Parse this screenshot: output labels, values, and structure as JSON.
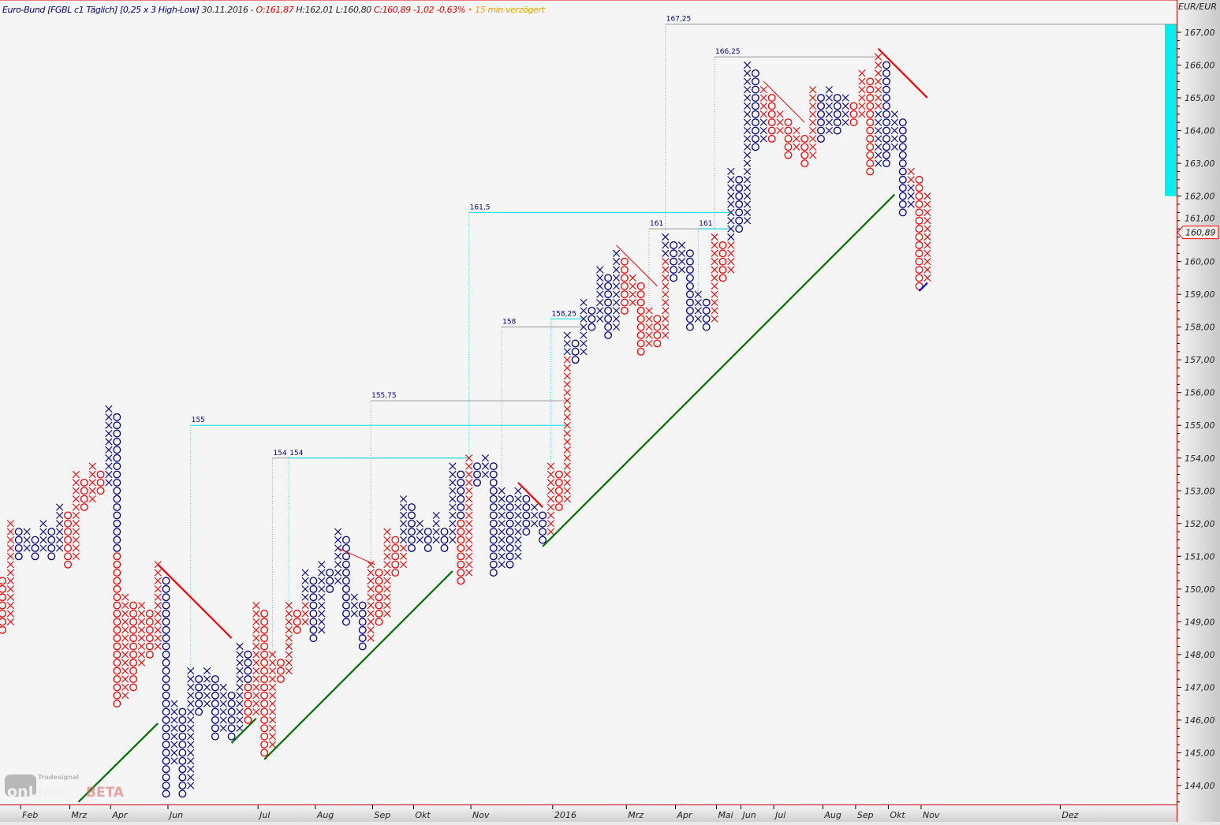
{
  "header": {
    "instrument": "Euro-Bund [FGBL c1 Täglich] [0,25 x 3 High-Low]",
    "date": "30.11.2016 -",
    "open": "O:161,87",
    "high_low": "H:162,01 L:160,80",
    "close": "C:160,89 -1,02 -0,63%",
    "delay": "• 15 min verzögert"
  },
  "logo": {
    "brand": "Tradesignal",
    "name": "onLine",
    "tag": "BETA"
  },
  "colors": {
    "n": "#000080",
    "r": "#ff0000",
    "trend_up": "#007000",
    "trend_down": "#ff0000",
    "target": "#00e5ee",
    "target_gray": "#999999",
    "bar": "#00f0f0"
  },
  "chart_data": {
    "type": "point-and-figure",
    "box_size": 0.25,
    "reversal": 3,
    "method": "High-Low",
    "currency_label": "EUR/EUR",
    "ylim": [
      143.5,
      167.75
    ],
    "y_ticks": [
      "144,00",
      "145,00",
      "146,00",
      "147,00",
      "148,00",
      "149,00",
      "150,00",
      "151,00",
      "152,00",
      "153,00",
      "154,00",
      "155,00",
      "156,00",
      "157,00",
      "158,00",
      "159,00",
      "160,00",
      "161,00",
      "162,00",
      "163,00",
      "164,00",
      "165,00",
      "166,00",
      "167,00"
    ],
    "last_price_label": "160,89",
    "last_price": 160.89,
    "x_labels": [
      {
        "label": "Feb",
        "col": 3
      },
      {
        "label": "Mrz",
        "col": 9
      },
      {
        "label": "Apr",
        "col": 14
      },
      {
        "label": "Jun",
        "col": 21
      },
      {
        "label": "Jul",
        "col": 32
      },
      {
        "label": "Aug",
        "col": 39
      },
      {
        "label": "Sep",
        "col": 46
      },
      {
        "label": "Okt",
        "col": 51
      },
      {
        "label": "Nov",
        "col": 58
      },
      {
        "label": "2016",
        "col": 68
      },
      {
        "label": "Mrz",
        "col": 77
      },
      {
        "label": "Apr",
        "col": 83
      },
      {
        "label": "Mai",
        "col": 88
      },
      {
        "label": "Jun",
        "col": 91
      },
      {
        "label": "Jul",
        "col": 95
      },
      {
        "label": "Aug",
        "col": 101
      },
      {
        "label": "Sep",
        "col": 105
      },
      {
        "label": "Okt",
        "col": 109
      },
      {
        "label": "Nov",
        "col": 113
      },
      {
        "label": "Dez",
        "col": 130
      }
    ],
    "columns": [
      [
        "O",
        148.75,
        150.25,
        "r"
      ],
      [
        "X",
        149,
        152,
        "r"
      ],
      [
        "O",
        151,
        151.75,
        "n"
      ],
      [
        "X",
        151.25,
        151.75,
        "n"
      ],
      [
        "O",
        151,
        151.5,
        "n"
      ],
      [
        "X",
        151.25,
        152,
        "n"
      ],
      [
        "O",
        151,
        151.75,
        "n"
      ],
      [
        "X",
        151.25,
        152.5,
        "n"
      ],
      [
        "O",
        150.75,
        152.25,
        "r"
      ],
      [
        "X",
        151,
        153.5,
        "r"
      ],
      [
        "O",
        152.5,
        153.25,
        "r"
      ],
      [
        "X",
        152.75,
        153.75,
        "r"
      ],
      [
        "O",
        153,
        153.5,
        "r"
      ],
      [
        "X",
        153.25,
        155.5,
        "n"
      ],
      [
        "O",
        146.5,
        155.25,
        "r",
        "n",
        151.25
      ],
      [
        "X",
        146.75,
        149.75,
        "r"
      ],
      [
        "O",
        147,
        149.5,
        "r"
      ],
      [
        "X",
        147.75,
        149.5,
        "r"
      ],
      [
        "O",
        148,
        149.25,
        "r"
      ],
      [
        "X",
        148.25,
        150.75,
        "r"
      ],
      [
        "O",
        143.75,
        150.25,
        "n"
      ],
      [
        "X",
        144.75,
        146.5,
        "n"
      ],
      [
        "O",
        143.75,
        146.25,
        "n"
      ],
      [
        "X",
        144,
        147.5,
        "n"
      ],
      [
        "O",
        146.25,
        147.25,
        "n"
      ],
      [
        "X",
        146.5,
        147.5,
        "n"
      ],
      [
        "O",
        145.5,
        147.25,
        "n"
      ],
      [
        "X",
        145.75,
        147,
        "n"
      ],
      [
        "O",
        145.5,
        146.75,
        "n"
      ],
      [
        "X",
        145.75,
        148.25,
        "n"
      ],
      [
        "O",
        146,
        148,
        "r",
        "n",
        147.25
      ],
      [
        "X",
        146.25,
        149.5,
        "r"
      ],
      [
        "O",
        145,
        149.25,
        "r"
      ],
      [
        "X",
        145.25,
        148,
        "r"
      ],
      [
        "O",
        147.25,
        147.75,
        "r"
      ],
      [
        "X",
        147.5,
        149.5,
        "r"
      ],
      [
        "O",
        148.75,
        149.25,
        "r"
      ],
      [
        "X",
        149,
        150.5,
        "r",
        "n",
        149.75
      ],
      [
        "O",
        148.5,
        150.25,
        "n"
      ],
      [
        "X",
        148.75,
        150.75,
        "n"
      ],
      [
        "O",
        150,
        150.5,
        "n"
      ],
      [
        "X",
        150.25,
        151.75,
        "n"
      ],
      [
        "O",
        149,
        151.5,
        "n"
      ],
      [
        "X",
        149.25,
        149.75,
        "n"
      ],
      [
        "O",
        148.25,
        149.5,
        "n"
      ],
      [
        "X",
        148.5,
        150.75,
        "r"
      ],
      [
        "O",
        149,
        150.5,
        "r"
      ],
      [
        "X",
        149.25,
        151.75,
        "r"
      ],
      [
        "O",
        150.5,
        151.5,
        "r"
      ],
      [
        "X",
        150.75,
        152.75,
        "r",
        "n",
        151.5
      ],
      [
        "O",
        151.25,
        152.5,
        "n"
      ],
      [
        "X",
        151.5,
        152,
        "n"
      ],
      [
        "O",
        151.25,
        151.75,
        "n"
      ],
      [
        "X",
        151.5,
        152.25,
        "n"
      ],
      [
        "O",
        151.25,
        151.75,
        "n"
      ],
      [
        "X",
        151.5,
        153.75,
        "n"
      ],
      [
        "O",
        150.25,
        153.5,
        "r",
        "n",
        152.25
      ],
      [
        "X",
        150.5,
        154,
        "r"
      ],
      [
        "O",
        153.25,
        153.75,
        "n"
      ],
      [
        "X",
        153.5,
        154,
        "n"
      ],
      [
        "O",
        150.5,
        153.75,
        "n"
      ],
      [
        "X",
        150.75,
        153,
        "n"
      ],
      [
        "O",
        150.75,
        152.75,
        "n"
      ],
      [
        "X",
        151,
        153,
        "n"
      ],
      [
        "O",
        151.75,
        152.75,
        "n"
      ],
      [
        "X",
        152,
        152.5,
        "n"
      ],
      [
        "O",
        151.5,
        152.25,
        "n"
      ],
      [
        "X",
        151.75,
        153.75,
        "r"
      ],
      [
        "O",
        152.5,
        153.5,
        "r"
      ],
      [
        "X",
        152.75,
        157.75,
        "r",
        "n",
        157.25
      ],
      [
        "O",
        157,
        157.5,
        "n"
      ],
      [
        "X",
        157.25,
        158.75,
        "n"
      ],
      [
        "O",
        158,
        158.5,
        "n"
      ],
      [
        "X",
        158.25,
        159.75,
        "n"
      ],
      [
        "O",
        157.75,
        159.5,
        "n"
      ],
      [
        "X",
        158,
        160.25,
        "n"
      ],
      [
        "O",
        158.5,
        160,
        "r"
      ],
      [
        "X",
        158.75,
        159.5,
        "r"
      ],
      [
        "O",
        157.25,
        159.25,
        "r"
      ],
      [
        "X",
        157.5,
        158.5,
        "r"
      ],
      [
        "O",
        157.5,
        158.25,
        "r"
      ],
      [
        "X",
        157.75,
        160.75,
        "r",
        "n",
        160.25
      ],
      [
        "O",
        159.5,
        160.5,
        "n"
      ],
      [
        "X",
        159.75,
        160.5,
        "n"
      ],
      [
        "O",
        158,
        160.25,
        "n"
      ],
      [
        "X",
        158.25,
        159,
        "n"
      ],
      [
        "O",
        158,
        158.75,
        "n"
      ],
      [
        "X",
        158.25,
        160.75,
        "r"
      ],
      [
        "O",
        159.5,
        160.5,
        "r"
      ],
      [
        "X",
        159.75,
        162.75,
        "r",
        "n",
        160.75
      ],
      [
        "O",
        161,
        162.5,
        "n"
      ],
      [
        "X",
        161.25,
        166,
        "n"
      ],
      [
        "O",
        163.5,
        165.75,
        "n"
      ],
      [
        "X",
        163.75,
        165.25,
        "n",
        "r",
        164.5
      ],
      [
        "O",
        163.75,
        165,
        "r"
      ],
      [
        "X",
        164,
        164.5,
        "r"
      ],
      [
        "O",
        163.25,
        164.25,
        "r"
      ],
      [
        "X",
        163.5,
        164,
        "r"
      ],
      [
        "O",
        163,
        163.75,
        "r"
      ],
      [
        "X",
        163.25,
        165.25,
        "r"
      ],
      [
        "O",
        163.75,
        165,
        "n"
      ],
      [
        "X",
        164,
        165.25,
        "n"
      ],
      [
        "O",
        164,
        165,
        "n"
      ],
      [
        "X",
        164.25,
        165,
        "n"
      ],
      [
        "O",
        164.25,
        164.75,
        "r"
      ],
      [
        "X",
        164.5,
        165.75,
        "r"
      ],
      [
        "O",
        162.75,
        165.5,
        "r"
      ],
      [
        "X",
        163,
        166.25,
        "n",
        "r",
        164.75
      ],
      [
        "O",
        163,
        166,
        "n"
      ],
      [
        "X",
        163.5,
        164.5,
        "n"
      ],
      [
        "O",
        161.5,
        164.25,
        "n"
      ],
      [
        "X",
        161.75,
        162.75,
        "n",
        "r",
        162.5
      ],
      [
        "O",
        159.25,
        162.5,
        "r"
      ],
      [
        "X",
        159.5,
        162,
        "r"
      ]
    ],
    "price_targets": [
      {
        "label": "155",
        "price": 155,
        "from_col": 23,
        "to_col": 69,
        "style": "cyan",
        "drop_to": 147.5
      },
      {
        "label": "154",
        "price": 154,
        "from_col": 33,
        "to_col": 57,
        "style": "gray",
        "drop_to": 148
      },
      {
        "label": "154",
        "price": 154,
        "from_col": 35,
        "to_col": 57,
        "style": "cyan",
        "drop_to": 147.5
      },
      {
        "label": "155,75",
        "price": 155.75,
        "from_col": 45,
        "to_col": 69,
        "style": "gray",
        "drop_to": 150.75
      },
      {
        "label": "161,5",
        "price": 161.5,
        "from_col": 57,
        "to_col": 89,
        "style": "cyan",
        "drop_to": 154
      },
      {
        "label": "158",
        "price": 158,
        "from_col": 61,
        "to_col": 71,
        "style": "gray",
        "drop_to": 153
      },
      {
        "label": "158,25",
        "price": 158.25,
        "from_col": 67,
        "to_col": 71,
        "style": "cyan",
        "drop_to": 153.75
      },
      {
        "label": "161",
        "price": 161,
        "from_col": 79,
        "to_col": 89,
        "style": "gray",
        "drop_to": 158.5
      },
      {
        "label": "167,25",
        "price": 167.25,
        "from_col": 81,
        "to_col": 143,
        "style": "gray",
        "drop_to": 160.75
      },
      {
        "label": "161",
        "price": 161,
        "from_col": 85,
        "to_col": 89,
        "style": "cyan",
        "drop_to": 158.25
      },
      {
        "label": "166,25",
        "price": 166.25,
        "from_col": 87,
        "to_col": 107,
        "style": "gray",
        "drop_to": 160.75
      }
    ],
    "trendlines": [
      {
        "kind": "down",
        "from": [
          19,
          150.75
        ],
        "to": [
          28,
          148.5
        ],
        "weight": "thick"
      },
      {
        "kind": "down",
        "from": [
          41,
          151.25
        ],
        "to": [
          45.5,
          150.75
        ],
        "weight": "thin"
      },
      {
        "kind": "down",
        "from": [
          63,
          153.25
        ],
        "to": [
          66,
          152.5
        ],
        "weight": "thick"
      },
      {
        "kind": "down",
        "from": [
          75,
          160.5
        ],
        "to": [
          80,
          159.25
        ],
        "weight": "thin"
      },
      {
        "kind": "down",
        "from": [
          93,
          165.5
        ],
        "to": [
          98,
          164.25
        ],
        "weight": "thin"
      },
      {
        "kind": "down",
        "from": [
          107,
          166.5
        ],
        "to": [
          113,
          165
        ],
        "weight": "thick"
      },
      {
        "kind": "up",
        "from": [
          9.3,
          143.5
        ],
        "to": [
          19,
          145.9
        ],
        "weight": "thick"
      },
      {
        "kind": "up",
        "from": [
          28,
          145.3
        ],
        "to": [
          31,
          146.05
        ],
        "weight": "thick"
      },
      {
        "kind": "up",
        "from": [
          32,
          144.8
        ],
        "to": [
          55,
          150.55
        ],
        "weight": "thick"
      },
      {
        "kind": "up",
        "from": [
          66,
          151.3
        ],
        "to": [
          109,
          162.05
        ],
        "weight": "thick"
      },
      {
        "kind": "blue",
        "from": [
          112,
          159.1
        ],
        "to": [
          113,
          159.35
        ],
        "weight": "thick"
      }
    ],
    "volatility_bar": {
      "low": 162.0,
      "high": 167.25
    }
  }
}
